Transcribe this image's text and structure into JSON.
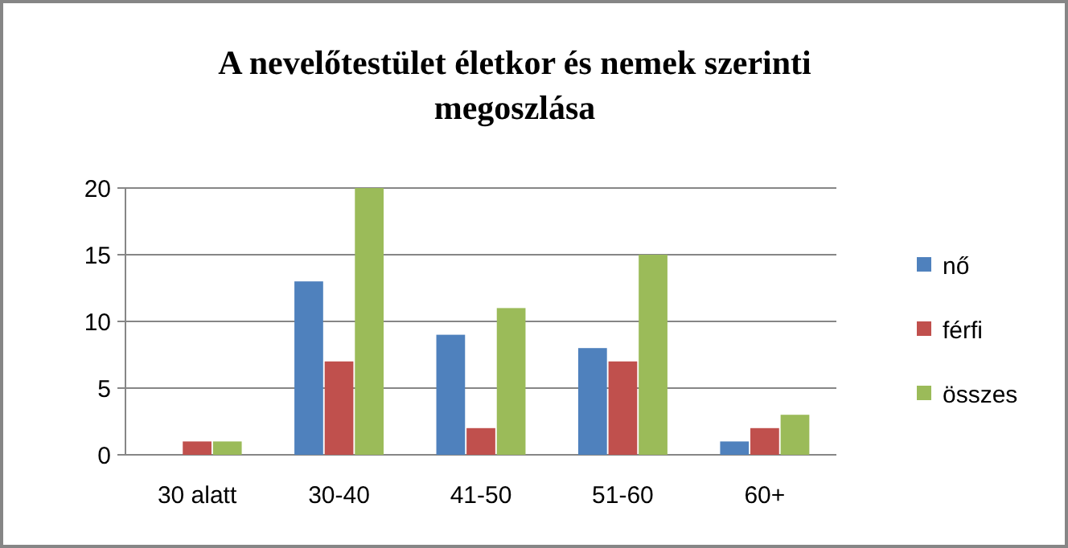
{
  "chart_data": {
    "type": "bar",
    "title": "A nevelőtestület életkor és nemek szerinti megoszlása",
    "categories": [
      "30 alatt",
      "30-40",
      "41-50",
      "51-60",
      "60+"
    ],
    "series": [
      {
        "name": "nő",
        "color": "#4f81bd",
        "values": [
          0,
          13,
          9,
          8,
          1
        ]
      },
      {
        "name": "férfi",
        "color": "#c0504d",
        "values": [
          1,
          7,
          2,
          7,
          2
        ]
      },
      {
        "name": "összes",
        "color": "#9bbb59",
        "values": [
          1,
          20,
          11,
          15,
          3
        ]
      }
    ],
    "ylim": [
      0,
      20
    ],
    "yticks": [
      0,
      5,
      10,
      15,
      20
    ],
    "grid": "y",
    "legend": "right"
  }
}
